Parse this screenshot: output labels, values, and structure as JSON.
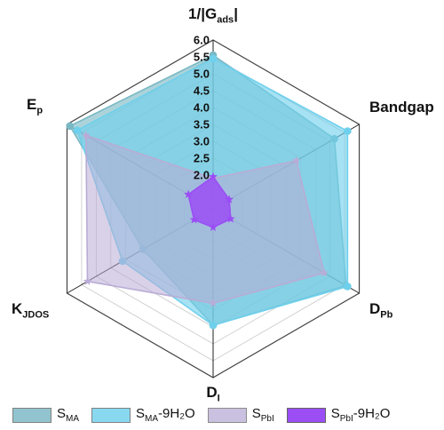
{
  "chart_data": {
    "type": "radar",
    "axes": [
      {
        "label": "1/|G",
        "sub": "ads",
        "suffix": "|"
      },
      {
        "label": "Bandgap",
        "sub": "",
        "suffix": ""
      },
      {
        "label": "D",
        "sub": "Pb",
        "suffix": ""
      },
      {
        "label": "D",
        "sub": "I",
        "suffix": ""
      },
      {
        "label": "K",
        "sub": "JDOS",
        "suffix": ""
      },
      {
        "label": "E",
        "sub": "p",
        "suffix": ""
      }
    ],
    "rlim": [
      1.0,
      6.0
    ],
    "ticks": [
      "2.0",
      "2.5",
      "3.0",
      "3.5",
      "4.0",
      "4.5",
      "5.0",
      "5.5",
      "6.0"
    ],
    "grid": true,
    "legend_position": "bottom",
    "series": [
      {
        "label": "S",
        "sub": "MA",
        "suffix": "",
        "color": "#79b8c4",
        "fill_opacity": 0.62,
        "marker": "circle",
        "values": [
          5.55,
          5.15,
          5.55,
          4.45,
          3.4,
          5.9
        ]
      },
      {
        "label": "S",
        "sub": "MA",
        "suffix": "-9H₂O",
        "color": "#6fd0ec",
        "fill_opacity": 0.62,
        "marker": "circle",
        "values": [
          5.45,
          5.6,
          5.6,
          4.45,
          4.1,
          5.65
        ]
      },
      {
        "label": "S",
        "sub": "PbI",
        "suffix": "",
        "color": "#b9acd6",
        "fill_opacity": 0.55,
        "marker": "star",
        "values": [
          1.9,
          3.85,
          4.8,
          3.8,
          5.3,
          5.35
        ]
      },
      {
        "label": "S",
        "sub": "PbI",
        "suffix": "-9H₂O",
        "color": "#9a4ef4",
        "fill_opacity": 0.85,
        "marker": "star",
        "values": [
          1.95,
          1.55,
          1.6,
          1.55,
          1.65,
          1.85
        ]
      }
    ]
  }
}
